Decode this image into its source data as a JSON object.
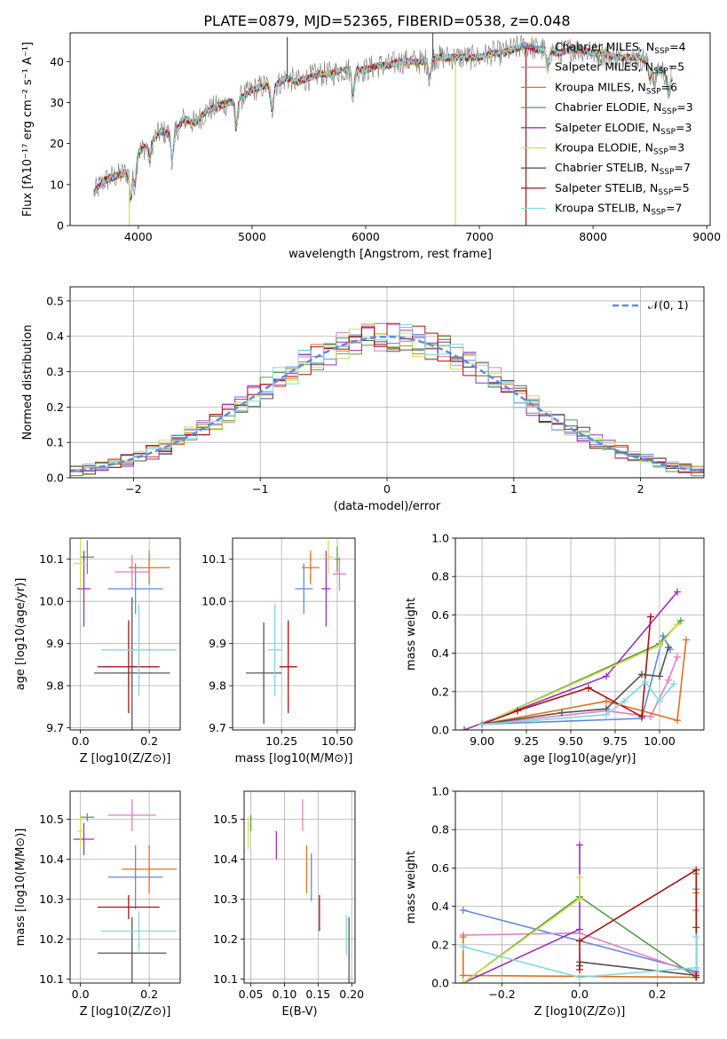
{
  "title": "PLATE=0879, MJD=52365, FIBERID=0538, z=0.048",
  "series_colors": [
    "#5d8be0",
    "#e47ec0",
    "#e07020",
    "#5a9a4a",
    "#9b30b8",
    "#d0e050",
    "#555555",
    "#aa1111",
    "#80d8e0"
  ],
  "legend_labels": [
    {
      "base": "Chabrier MILES, N",
      "sub": "SSP",
      "tail": "=4"
    },
    {
      "base": "Salpeter MILES, N",
      "sub": "SSP",
      "tail": "=5"
    },
    {
      "base": "Kroupa MILES, N",
      "sub": "SSP",
      "tail": "=6"
    },
    {
      "base": "Chabrier ELODIE, N",
      "sub": "SSP",
      "tail": "=3"
    },
    {
      "base": "Salpeter ELODIE, N",
      "sub": "SSP",
      "tail": "=3"
    },
    {
      "base": "Kroupa ELODIE, N",
      "sub": "SSP",
      "tail": "=3"
    },
    {
      "base": "Chabrier STELIB, N",
      "sub": "SSP",
      "tail": "=7"
    },
    {
      "base": "Salpeter STELIB, N",
      "sub": "SSP",
      "tail": "=5"
    },
    {
      "base": "Kroupa STELIB, N",
      "sub": "SSP",
      "tail": "=7"
    }
  ],
  "chart_data": [
    {
      "id": "spectrum",
      "type": "line",
      "xlabel": "wavelength [Angstrom, rest frame]",
      "ylabel": "Flux [fλ10⁻¹⁷ erg cm⁻² s⁻¹ A⁻¹]",
      "xlim": [
        3400,
        9030
      ],
      "ylim": [
        0,
        47
      ],
      "xticks": [
        4000,
        5000,
        6000,
        7000,
        8000,
        9000
      ],
      "yticks": [
        0,
        10,
        20,
        30,
        40
      ],
      "anchors_x": [
        3610,
        3700,
        3800,
        3900,
        4000,
        4100,
        4200,
        4300,
        4400,
        4500,
        4600,
        4700,
        4800,
        4900,
        5000,
        5100,
        5200,
        5300,
        5400,
        5500,
        5600,
        5700,
        5800,
        5900,
        6000,
        6100,
        6200,
        6300,
        6400,
        6500,
        6600,
        6700,
        6800,
        6900,
        7000,
        7100,
        7200,
        7300,
        7400,
        7500,
        7600,
        7700,
        7800,
        7900,
        8000,
        8100,
        8200,
        8300,
        8400,
        8500,
        8600,
        8700
      ],
      "anchors_y": [
        8,
        11,
        12,
        13,
        18,
        20,
        23,
        22,
        26,
        25,
        28,
        29,
        30,
        31,
        33,
        34,
        34,
        36,
        35,
        36,
        37,
        37,
        38,
        38,
        38,
        39,
        39,
        40,
        40,
        40,
        41,
        41,
        41,
        41,
        41,
        42,
        42,
        43,
        44,
        43,
        43,
        42,
        43,
        43,
        42,
        42,
        41,
        41,
        41,
        40,
        38,
        36
      ],
      "dips": [
        [
          3934,
          -8
        ],
        [
          3969,
          -6
        ],
        [
          4101,
          -4
        ],
        [
          4300,
          -6
        ],
        [
          4861,
          -7
        ],
        [
          5175,
          -6
        ],
        [
          5890,
          -6
        ],
        [
          6563,
          -5
        ],
        [
          7600,
          -5
        ],
        [
          8498,
          -4
        ],
        [
          8542,
          -5
        ],
        [
          8662,
          -5
        ]
      ],
      "outliers": [
        {
          "series": 5,
          "x": 3920,
          "y": 0
        },
        {
          "series": 5,
          "x": 6790,
          "y": 0
        },
        {
          "series": 7,
          "x": 7410,
          "y": 0
        },
        {
          "series": 6,
          "x": 5310,
          "y": 46
        },
        {
          "series": 6,
          "x": 6590,
          "y": 47
        }
      ]
    },
    {
      "id": "residual_hist",
      "type": "histogram",
      "xlabel": "(data-model)/error",
      "ylabel": "Normed distribution",
      "xlim": [
        -2.5,
        2.5
      ],
      "ylim": [
        0,
        0.54
      ],
      "xticks": [
        -2,
        -1,
        0,
        1,
        2
      ],
      "yticks": [
        0.0,
        0.1,
        0.2,
        0.3,
        0.4,
        0.5
      ],
      "bin_width": 0.1,
      "legend": "𝒩(0, 1)"
    },
    {
      "id": "age_vs_Z",
      "type": "scatter",
      "xlabel": "Z [log10(Z/Z⊙)]",
      "ylabel": "age  [log10(age/yr)]",
      "xlim": [
        -0.03,
        0.29
      ],
      "ylim": [
        9.695,
        10.15
      ],
      "xticks": [
        0.0,
        0.2
      ],
      "yticks": [
        9.7,
        9.8,
        9.9,
        10.0,
        10.1
      ],
      "points": [
        {
          "s": 0,
          "x": 0.16,
          "y": 10.03,
          "xe": 0.08,
          "ye": 0.06
        },
        {
          "s": 1,
          "x": 0.15,
          "y": 10.07,
          "xe": 0.05,
          "ye": 0.04
        },
        {
          "s": 2,
          "x": 0.2,
          "y": 10.08,
          "xe": 0.06,
          "ye": 0.04
        },
        {
          "s": 3,
          "x": 0.02,
          "y": 10.105,
          "xe": 0.02,
          "ye": 0.04
        },
        {
          "s": 4,
          "x": 0.01,
          "y": 10.03,
          "xe": 0.02,
          "ye": 0.09
        },
        {
          "s": 5,
          "x": 0.0,
          "y": 10.09,
          "xe": 0.02,
          "ye": 0.06
        },
        {
          "s": 6,
          "x": 0.15,
          "y": 9.83,
          "xe": 0.11,
          "ye": 0.18
        },
        {
          "s": 7,
          "x": 0.14,
          "y": 9.845,
          "xe": 0.09,
          "ye": 0.11
        },
        {
          "s": 8,
          "x": 0.17,
          "y": 9.885,
          "xe": 0.11,
          "ye": 0.11
        }
      ]
    },
    {
      "id": "age_vs_mass",
      "type": "scatter",
      "xlabel": "mass [log10(M/M⊙)]",
      "ylabel": "",
      "xlim": [
        10.03,
        10.58
      ],
      "ylim": [
        9.695,
        10.15
      ],
      "xticks": [
        10.25,
        10.5
      ],
      "yticks": [
        9.7,
        9.8,
        9.9,
        10.0,
        10.1
      ],
      "points": [
        {
          "s": 0,
          "x": 10.35,
          "y": 10.03,
          "xe": 0.04,
          "ye": 0.06
        },
        {
          "s": 1,
          "x": 10.51,
          "y": 10.065,
          "xe": 0.03,
          "ye": 0.04
        },
        {
          "s": 2,
          "x": 10.38,
          "y": 10.08,
          "xe": 0.04,
          "ye": 0.04
        },
        {
          "s": 3,
          "x": 10.5,
          "y": 10.1,
          "xe": 0.01,
          "ye": 0.03
        },
        {
          "s": 4,
          "x": 10.45,
          "y": 10.03,
          "xe": 0.02,
          "ye": 0.09
        },
        {
          "s": 5,
          "x": 10.46,
          "y": 10.105,
          "xe": 0.02,
          "ye": 0.04
        },
        {
          "s": 6,
          "x": 10.17,
          "y": 9.83,
          "xe": 0.08,
          "ye": 0.12
        },
        {
          "s": 7,
          "x": 10.28,
          "y": 9.845,
          "xe": 0.04,
          "ye": 0.11
        },
        {
          "s": 8,
          "x": 10.22,
          "y": 9.885,
          "xe": 0.03,
          "ye": 0.11
        }
      ]
    },
    {
      "id": "mass_weight_vs_age",
      "type": "line",
      "xlabel": "age  [log10(age/yr)]",
      "ylabel": "mass weight",
      "xlim": [
        8.85,
        10.25
      ],
      "ylim": [
        0,
        1.0
      ],
      "xticks": [
        9.0,
        9.25,
        9.5,
        9.75,
        10.0
      ],
      "yticks": [
        0.0,
        0.2,
        0.4,
        0.6,
        0.8,
        1.0
      ],
      "series": [
        {
          "s": 0,
          "x": [
            9.0,
            9.9,
            10.02,
            10.06
          ],
          "y": [
            0.03,
            0.06,
            0.49,
            0.42
          ]
        },
        {
          "s": 1,
          "x": [
            9.0,
            9.7,
            9.95,
            10.05,
            10.1
          ],
          "y": [
            0.03,
            0.1,
            0.07,
            0.26,
            0.38
          ]
        },
        {
          "s": 2,
          "x": [
            9.0,
            9.7,
            10.1,
            10.15
          ],
          "y": [
            0.03,
            0.15,
            0.05,
            0.47
          ]
        },
        {
          "s": 3,
          "x": [
            9.0,
            10.0,
            10.12
          ],
          "y": [
            0.03,
            0.45,
            0.57
          ]
        },
        {
          "s": 4,
          "x": [
            8.9,
            9.7,
            10.1
          ],
          "y": [
            0.0,
            0.28,
            0.72
          ]
        },
        {
          "s": 5,
          "x": [
            9.0,
            10.0,
            10.1
          ],
          "y": [
            0.03,
            0.44,
            0.55
          ]
        },
        {
          "s": 6,
          "x": [
            9.0,
            9.45,
            9.7,
            9.9,
            10.0,
            10.05
          ],
          "y": [
            0.03,
            0.09,
            0.11,
            0.29,
            0.28,
            0.43
          ]
        },
        {
          "s": 7,
          "x": [
            9.0,
            9.2,
            9.6,
            9.9,
            9.95
          ],
          "y": [
            0.03,
            0.1,
            0.22,
            0.07,
            0.59
          ]
        },
        {
          "s": 8,
          "x": [
            9.0,
            9.3,
            9.7,
            9.8,
            9.92,
            10.0,
            10.08
          ],
          "y": [
            0.03,
            0.05,
            0.08,
            0.15,
            0.25,
            0.15,
            0.24
          ]
        }
      ]
    },
    {
      "id": "mass_vs_Z",
      "type": "scatter",
      "xlabel": "Z [log10(Z/Z⊙)]",
      "ylabel": "mass [log10(M/M⊙)]",
      "xlim": [
        -0.03,
        0.29
      ],
      "ylim": [
        10.09,
        10.57
      ],
      "xticks": [
        0.0,
        0.2
      ],
      "yticks": [
        10.1,
        10.2,
        10.3,
        10.4,
        10.5
      ],
      "points": [
        {
          "s": 0,
          "x": 0.16,
          "y": 10.355,
          "xe": 0.08,
          "ye": 0.08
        },
        {
          "s": 1,
          "x": 0.15,
          "y": 10.51,
          "xe": 0.07,
          "ye": 0.04
        },
        {
          "s": 2,
          "x": 0.2,
          "y": 10.375,
          "xe": 0.08,
          "ye": 0.06
        },
        {
          "s": 3,
          "x": 0.02,
          "y": 10.505,
          "xe": 0.02,
          "ye": 0.01
        },
        {
          "s": 4,
          "x": 0.01,
          "y": 10.45,
          "xe": 0.03,
          "ye": 0.04
        },
        {
          "s": 5,
          "x": 0.0,
          "y": 10.47,
          "xe": 0.01,
          "ye": 0.04
        },
        {
          "s": 6,
          "x": 0.15,
          "y": 10.165,
          "xe": 0.1,
          "ye": 0.09
        },
        {
          "s": 7,
          "x": 0.14,
          "y": 10.28,
          "xe": 0.09,
          "ye": 0.03
        },
        {
          "s": 8,
          "x": 0.17,
          "y": 10.22,
          "xe": 0.11,
          "ye": 0.05
        }
      ]
    },
    {
      "id": "mass_vs_EBV",
      "type": "scatter",
      "xlabel": "E(B-V)",
      "ylabel": "",
      "xlim": [
        0.04,
        0.205
      ],
      "ylim": [
        10.09,
        10.57
      ],
      "xticks": [
        0.05,
        0.1,
        0.15,
        0.2
      ],
      "yticks": [
        10.1,
        10.2,
        10.3,
        10.4,
        10.5
      ],
      "points": [
        {
          "s": 0,
          "x": 0.14,
          "y": 10.355,
          "xe": 0.0,
          "ye": 0.06
        },
        {
          "s": 1,
          "x": 0.127,
          "y": 10.51,
          "xe": 0.0,
          "ye": 0.04
        },
        {
          "s": 2,
          "x": 0.133,
          "y": 10.375,
          "xe": 0.0,
          "ye": 0.06
        },
        {
          "s": 3,
          "x": 0.05,
          "y": 10.49,
          "xe": 0.0,
          "ye": 0.02
        },
        {
          "s": 4,
          "x": 0.088,
          "y": 10.435,
          "xe": 0.0,
          "ye": 0.035
        },
        {
          "s": 5,
          "x": 0.046,
          "y": 10.465,
          "xe": 0.0,
          "ye": 0.04
        },
        {
          "s": 6,
          "x": 0.196,
          "y": 10.17,
          "xe": 0.0,
          "ye": 0.085
        },
        {
          "s": 7,
          "x": 0.152,
          "y": 10.265,
          "xe": 0.0,
          "ye": 0.045
        },
        {
          "s": 8,
          "x": 0.192,
          "y": 10.21,
          "xe": 0.0,
          "ye": 0.05
        }
      ]
    },
    {
      "id": "mass_weight_vs_Z",
      "type": "line",
      "xlabel": "Z [log10(Z/Z⊙)]",
      "ylabel": "mass weight",
      "xlim": [
        -0.32,
        0.32
      ],
      "ylim": [
        0,
        1.0
      ],
      "xticks": [
        -0.2,
        0.0,
        0.2
      ],
      "yticks": [
        0.0,
        0.2,
        0.4,
        0.6,
        0.8,
        1.0
      ],
      "series": [
        {
          "s": 0,
          "x": [
            -0.3,
            0.3,
            0.3
          ],
          "y": [
            0.38,
            0.06,
            0.49
          ]
        },
        {
          "s": 1,
          "x": [
            -0.3,
            0.0,
            0.3,
            0.3
          ],
          "y": [
            0.25,
            0.26,
            0.05,
            0.38
          ]
        },
        {
          "s": 2,
          "x": [
            -0.3,
            -0.3,
            0.3,
            0.3
          ],
          "y": [
            0.24,
            0.04,
            0.03,
            0.47
          ]
        },
        {
          "s": 3,
          "x": [
            -0.3,
            0.0,
            0.3,
            0.3
          ],
          "y": [
            0.0,
            0.45,
            0.03,
            0.57
          ]
        },
        {
          "s": 4,
          "x": [
            -0.3,
            0.0,
            0.0
          ],
          "y": [
            0.0,
            0.28,
            0.72
          ]
        },
        {
          "s": 5,
          "x": [
            -0.3,
            0.0,
            0.0
          ],
          "y": [
            0.0,
            0.44,
            0.55
          ]
        },
        {
          "s": 6,
          "x": [
            0.0,
            0.0,
            0.3,
            0.3
          ],
          "y": [
            0.09,
            0.11,
            0.04,
            0.29
          ]
        },
        {
          "s": 7,
          "x": [
            0.0,
            0.0,
            0.3,
            0.3
          ],
          "y": [
            0.07,
            0.22,
            0.59,
            0.03
          ]
        },
        {
          "s": 8,
          "x": [
            -0.3,
            0.0,
            0.3,
            0.3
          ],
          "y": [
            0.19,
            0.03,
            0.08,
            0.24
          ]
        }
      ]
    }
  ]
}
